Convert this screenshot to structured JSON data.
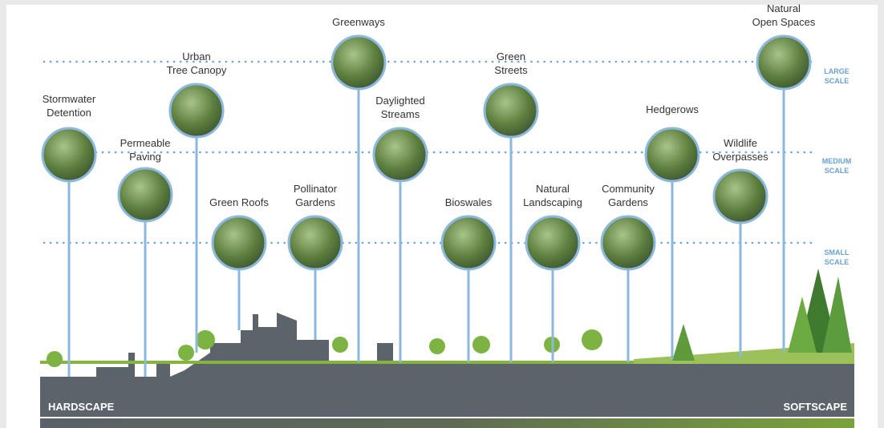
{
  "nodes": [
    {
      "label": [
        "Stormwater",
        "Detention"
      ]
    },
    {
      "label": [
        "Permeable",
        "Paving"
      ]
    },
    {
      "label": [
        "Urban",
        "Tree Canopy"
      ]
    },
    {
      "label": [
        "Green Roofs"
      ]
    },
    {
      "label": [
        "Pollinator",
        "Gardens"
      ]
    },
    {
      "label": [
        "Greenways"
      ]
    },
    {
      "label": [
        "Daylighted",
        "Streams"
      ]
    },
    {
      "label": [
        "Bioswales"
      ]
    },
    {
      "label": [
        "Green",
        "Streets"
      ]
    },
    {
      "label": [
        "Natural",
        "Landscaping"
      ]
    },
    {
      "label": [
        "Community",
        "Gardens"
      ]
    },
    {
      "label": [
        "Hedgerows"
      ]
    },
    {
      "label": [
        "Wildlife",
        "Overpasses"
      ]
    },
    {
      "label": [
        "Natural",
        "Open Spaces"
      ]
    }
  ],
  "scales": [
    {
      "label": [
        "LARGE",
        "SCALE"
      ]
    },
    {
      "label": [
        "MEDIUM",
        "SCALE"
      ]
    },
    {
      "label": [
        "SMALL",
        "SCALE"
      ]
    }
  ],
  "footer": {
    "left": "HARDSCAPE",
    "right": "SOFTSCAPE"
  }
}
